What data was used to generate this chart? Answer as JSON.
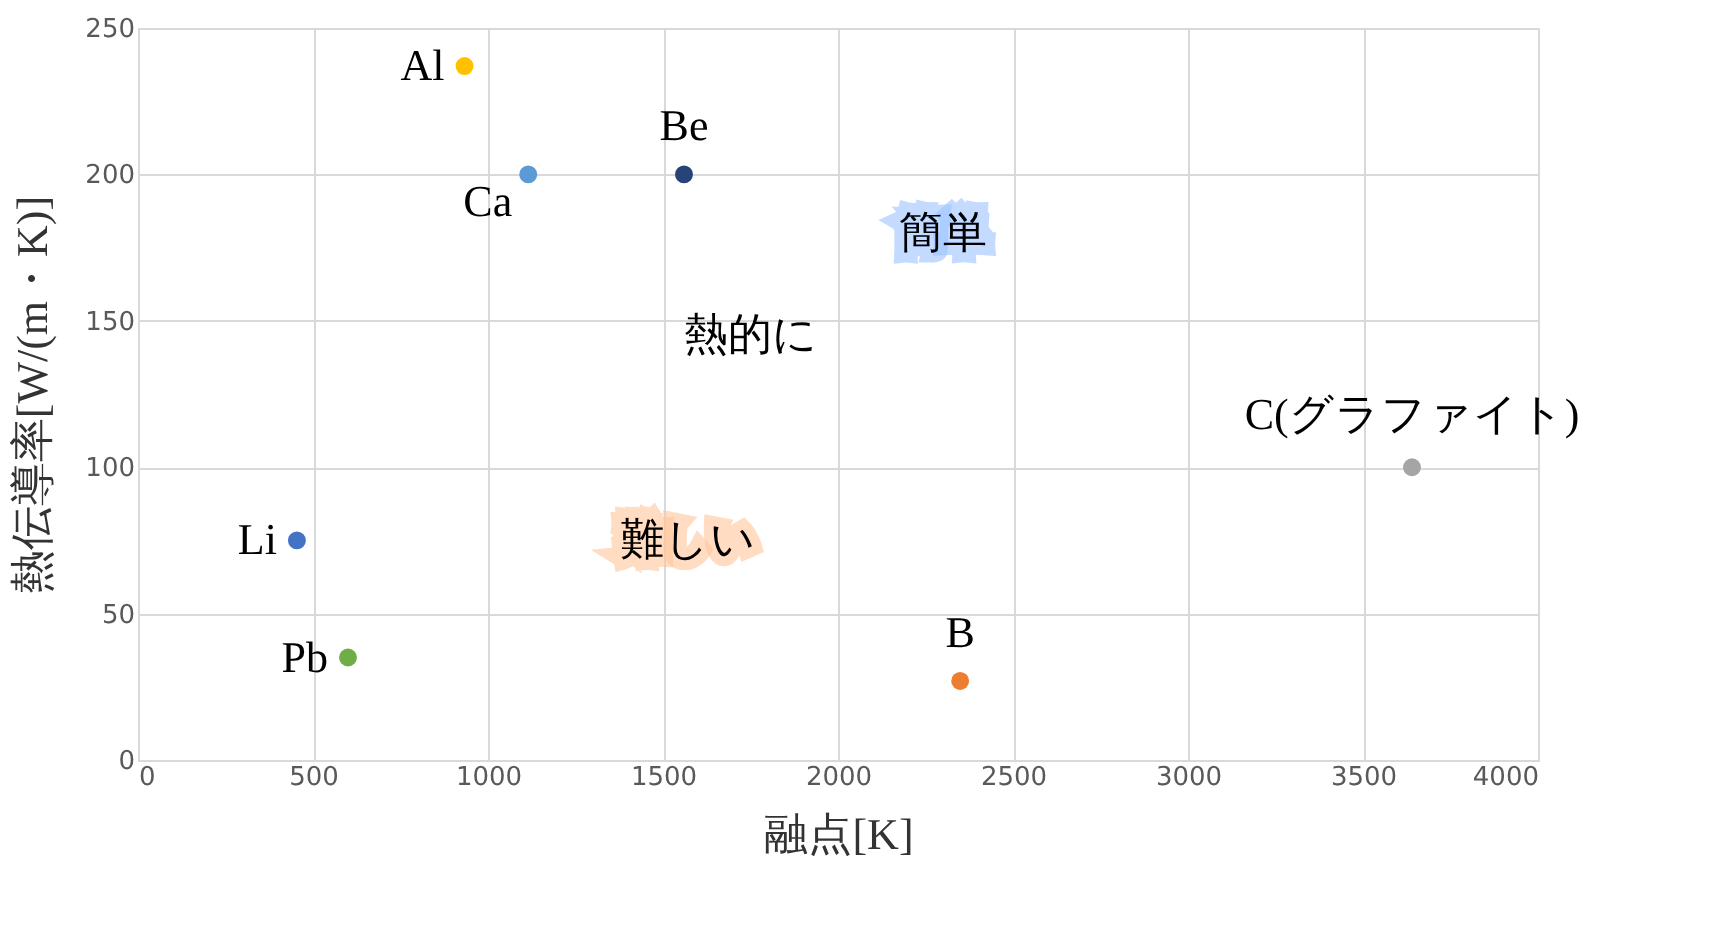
{
  "chart_data": {
    "type": "scatter",
    "xlabel": "融点[K]",
    "ylabel": "熱伝導率[W/(m・K)]",
    "x": [
      933,
      1115,
      1560,
      454,
      600,
      2349,
      3640
    ],
    "values": [
      237,
      200,
      200,
      75,
      35,
      27,
      100
    ],
    "colors": [
      "#ffc000",
      "#5b9bd5",
      "#264478",
      "#4472c4",
      "#70ad47",
      "#ed7d31",
      "#a5a5a5"
    ],
    "xlim": [
      0,
      4000
    ],
    "xticks": [
      0,
      500,
      1000,
      1500,
      2000,
      2500,
      3000,
      3500,
      4000
    ],
    "ylim": [
      0,
      250
    ],
    "yticks": [
      0,
      50,
      100,
      150,
      200,
      250
    ],
    "grid": true,
    "marker": "circle",
    "legend": false,
    "annotations": [
      {
        "text": "Al",
        "x": 933,
        "y": 237
      },
      {
        "text": "Ca",
        "x": 1115,
        "y": 200
      },
      {
        "text": "Be",
        "x": 1560,
        "y": 200
      },
      {
        "text": "Li",
        "x": 454,
        "y": 75
      },
      {
        "text": "Pb",
        "x": 600,
        "y": 35
      },
      {
        "text": "B",
        "x": 2349,
        "y": 27
      },
      {
        "text": "C(グラファイト)",
        "x": 3640,
        "y": 100
      },
      "熱的に",
      "簡単",
      "難しい"
    ]
  }
}
